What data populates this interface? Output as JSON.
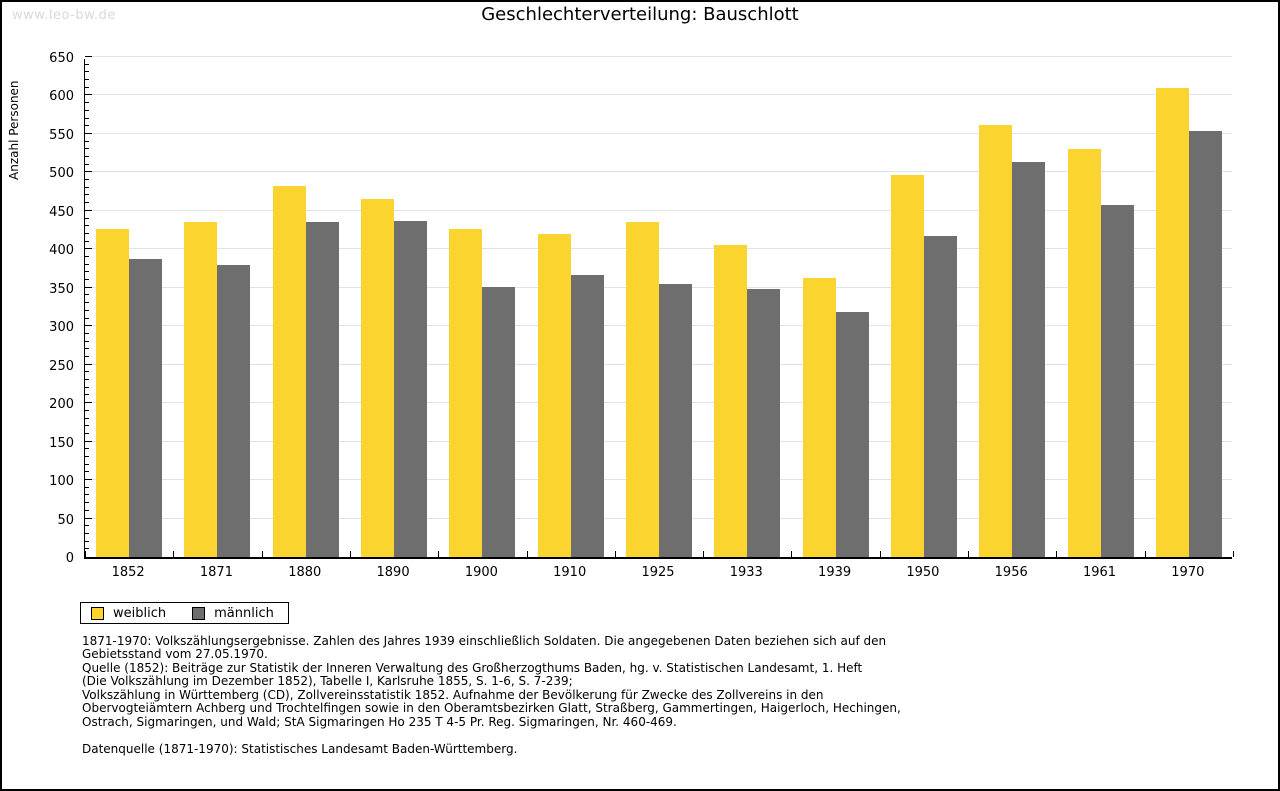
{
  "page": {
    "watermark": "www.leo-bw.de",
    "title": "Geschlechterverteilung: Bauschlott"
  },
  "chart_data": {
    "type": "bar",
    "title": "Geschlechterverteilung: Bauschlott",
    "xlabel": "",
    "ylabel": "Anzahl Personen",
    "categories": [
      "1852",
      "1871",
      "1880",
      "1890",
      "1900",
      "1910",
      "1925",
      "1933",
      "1939",
      "1950",
      "1956",
      "1961",
      "1970"
    ],
    "series": [
      {
        "name": "weiblich",
        "color": "#FCD42F",
        "values": [
          427,
          435,
          482,
          465,
          427,
          420,
          436,
          406,
          363,
          497,
          561,
          531,
          610
        ]
      },
      {
        "name": "männlich",
        "color": "#6E6E6E",
        "values": [
          388,
          380,
          435,
          437,
          351,
          367,
          355,
          348,
          318,
          417,
          513,
          457,
          554
        ]
      }
    ],
    "ylim": [
      0,
      650
    ],
    "ytick_step": 50,
    "yminor_step": 10,
    "grid": true,
    "legend_position": "below-left"
  },
  "legend": {
    "items": [
      {
        "label": "weiblich",
        "color": "#FCD42F"
      },
      {
        "label": "männlich",
        "color": "#6E6E6E"
      }
    ]
  },
  "footnotes": {
    "lines": [
      "1871-1970: Volkszählungsergebnisse. Zahlen des Jahres 1939 einschließlich Soldaten. Die angegebenen Daten beziehen sich auf den",
      "Gebietsstand vom 27.05.1970.",
      "Quelle (1852): Beiträge zur Statistik der Inneren Verwaltung des Großherzogthums Baden, hg. v. Statistischen Landesamt, 1. Heft",
      "(Die Volkszählung im Dezember 1852), Tabelle I, Karlsruhe 1855, S. 1-6, S. 7-239;",
      "Volkszählung in Württemberg (CD), Zollvereinsstatistik 1852. Aufnahme der Bevölkerung für Zwecke des Zollvereins in den",
      "Obervogteiämtern Achberg und Trochtelfingen sowie in den Oberamtsbezirken Glatt, Straßberg, Gammertingen, Haigerloch, Hechingen,",
      "Ostrach, Sigmaringen, und Wald; StA Sigmaringen Ho 235 T 4-5 Pr. Reg. Sigmaringen, Nr. 460-469.",
      "",
      "Datenquelle (1871-1970): Statistisches Landesamt Baden-Württemberg."
    ]
  },
  "colors": {
    "bar_female": "#FCD42F",
    "bar_male": "#6E6E6E",
    "gridline": "#E2E2E2",
    "axis": "#000000",
    "watermark": "#D9D9D9",
    "background": "#FFFFFF",
    "page_border": "#000000"
  }
}
